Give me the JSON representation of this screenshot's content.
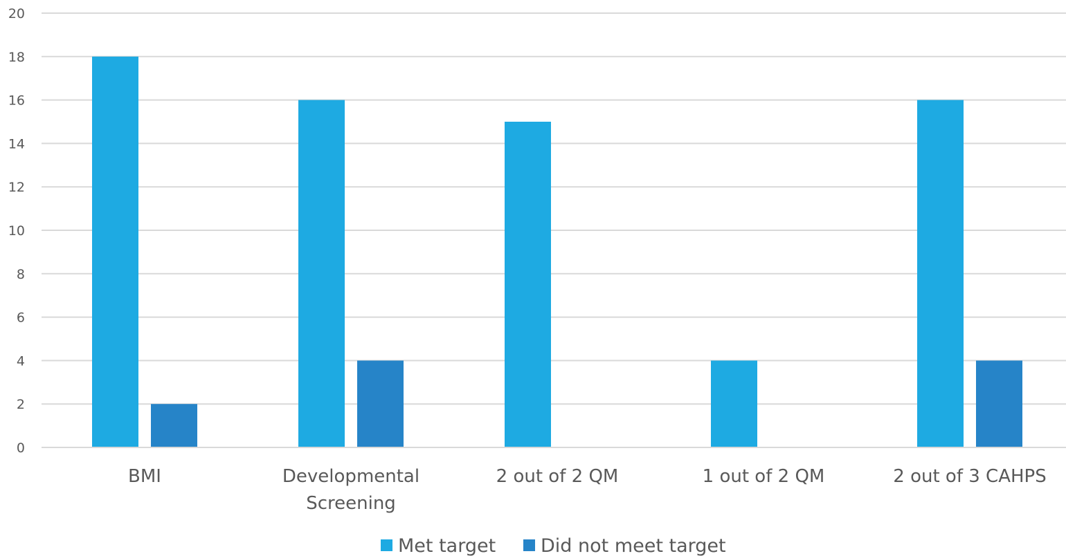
{
  "chart_data": {
    "type": "bar",
    "title": "",
    "xlabel": "",
    "ylabel": "",
    "categories": [
      [
        "BMI"
      ],
      [
        "Developmental",
        "Screening"
      ],
      [
        "2 out of 2 QM"
      ],
      [
        "1 out of 2 QM"
      ],
      [
        "2 out of 3 CAHPS"
      ]
    ],
    "series": [
      {
        "name": "Met target",
        "color": "#1eaae2",
        "values": [
          18,
          16,
          15,
          4,
          16
        ]
      },
      {
        "name": "Did not meet target",
        "color": "#2684c8",
        "values": [
          2,
          4,
          0,
          0,
          4
        ]
      }
    ],
    "ylim": [
      0,
      20
    ],
    "yticks": [
      0,
      2,
      4,
      6,
      8,
      10,
      12,
      14,
      16,
      18,
      20
    ],
    "grid": true,
    "legend_position": "bottom"
  }
}
